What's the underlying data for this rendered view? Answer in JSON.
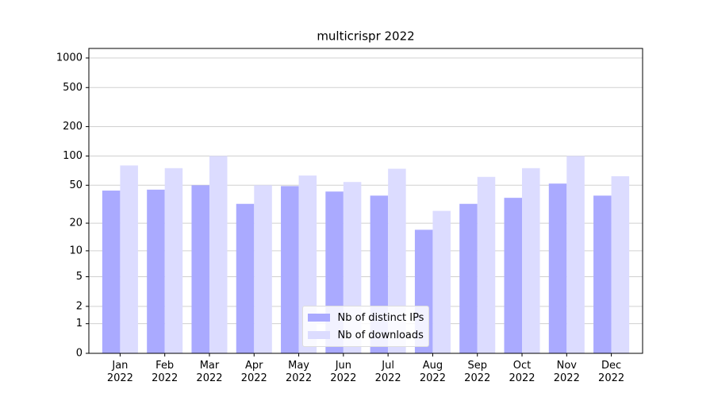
{
  "chart_data": {
    "type": "bar",
    "title": "multicrispr 2022",
    "categories": [
      "Jan 2022",
      "Feb 2022",
      "Mar 2022",
      "Apr 2022",
      "May 2022",
      "Jun 2022",
      "Jul 2022",
      "Aug 2022",
      "Sep 2022",
      "Oct 2022",
      "Nov 2022",
      "Dec 2022"
    ],
    "series": [
      {
        "name": "Nb of distinct IPs",
        "color": "#aaaaff",
        "values": [
          44,
          45,
          50,
          32,
          49,
          43,
          39,
          17,
          32,
          37,
          52,
          39
        ]
      },
      {
        "name": "Nb of downloads",
        "color": "#dcdcff",
        "values": [
          80,
          75,
          100,
          50,
          63,
          54,
          74,
          27,
          61,
          75,
          100,
          62
        ]
      }
    ],
    "yscale": "log1p",
    "ylim": [
      0,
      1250
    ],
    "yticks": [
      0,
      1,
      2,
      5,
      10,
      20,
      50,
      100,
      200,
      500,
      1000
    ],
    "grid": true,
    "legend": "lower center"
  }
}
